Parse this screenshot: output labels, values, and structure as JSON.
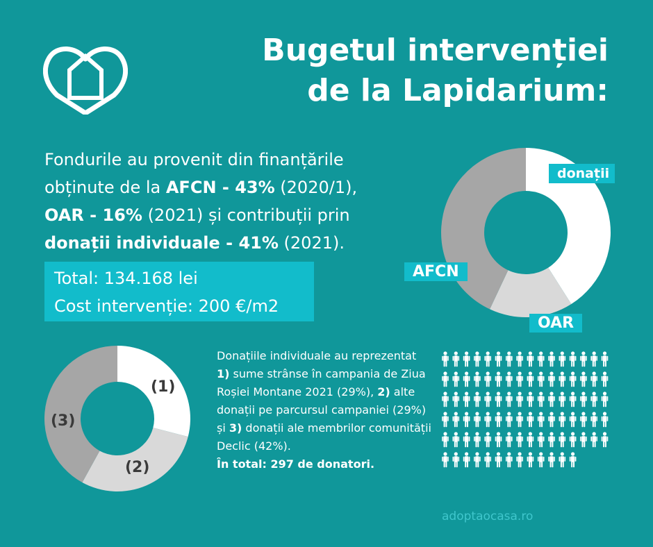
{
  "header": {
    "title_line1": "Bugetul intervenției",
    "title_line2": "de la Lapidarium:"
  },
  "intro": {
    "p1": "Fondurile au provenit din finanțările obținute de la ",
    "afcn": "AFCN - 43%",
    "afcn_rest": " (2020/1),",
    "oar": "OAR  - 16%",
    "oar_rest": " (2021) și contribuții prin ",
    "donatii": "donații individuale - 41%",
    "donatii_rest": " (2021)."
  },
  "totals": {
    "total": "Total: 134.168 lei",
    "cost": "Cost intervenție: 200 €/m2"
  },
  "funding_chart": {
    "labels": {
      "donatii": "donații",
      "afcn": "AFCN",
      "oar": "OAR"
    }
  },
  "donations_chart": {
    "labels": {
      "s1": "(1)",
      "s2": "(2)",
      "s3": "(3)"
    }
  },
  "donations_text": {
    "t1": "Donațiile individuale au reprezentat ",
    "n1": "1)",
    "t2": " sume strânse în campania de Ziua Roșiei Montane 2021 (29%), ",
    "n2": "2)",
    "t3": " alte donații pe parcursul campaniei (29%) și ",
    "n3": "3)",
    "t4": " donații ale membrilor comunității Declic (42%).",
    "summary": "În total: 297 de donatori."
  },
  "footer": {
    "watermark": "adoptaocasa.ro"
  },
  "chart_data": [
    {
      "type": "pie",
      "categories": [
        "donații",
        "OAR",
        "AFCN"
      ],
      "values": [
        41,
        16,
        43
      ],
      "colors": [
        "#ffffff",
        "#d9d9d9",
        "#a6a6a6"
      ]
    },
    {
      "type": "pie",
      "categories": [
        "(1)",
        "(2)",
        "(3)"
      ],
      "values": [
        29,
        29,
        42
      ],
      "colors": [
        "#ffffff",
        "#d9d9d9",
        "#a6a6a6"
      ]
    }
  ],
  "people_graphic": {
    "icon": "person-icon",
    "count_shown": 93
  },
  "colors": {
    "background": "#10979a",
    "highlight": "#12bccb"
  }
}
